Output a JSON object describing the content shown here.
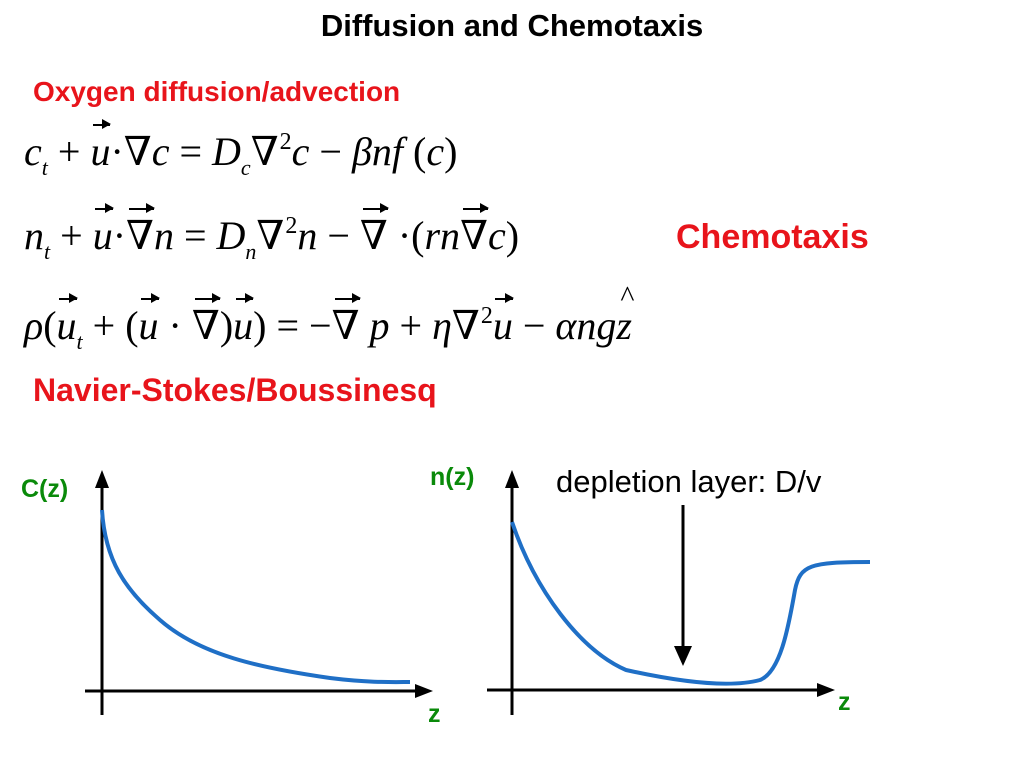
{
  "title": "Diffusion and Chemotaxis",
  "labels": {
    "oxygen": "Oxygen diffusion/advection",
    "chemotaxis": "Chemotaxis",
    "navier": "Navier-Stokes/Boussinesq",
    "depletion": "depletion layer: D/v"
  },
  "equations": {
    "eq1": "c_t + u·∇c = D_c∇²c − βnf(c)",
    "eq2": "n_t + u·∇n = D_n∇²n − ∇·(rn∇c)",
    "eq3": "ρ(u_t + (u·∇)u) = −∇p + η∇²u − αngẑ"
  },
  "graphs": {
    "left": {
      "ylabel": "C(z)",
      "xlabel": "z"
    },
    "right": {
      "ylabel": "n(z)",
      "xlabel": "z"
    }
  },
  "colors": {
    "red": "#e8141b",
    "green": "#0a8a0a",
    "curve": "#1f6fc6"
  }
}
